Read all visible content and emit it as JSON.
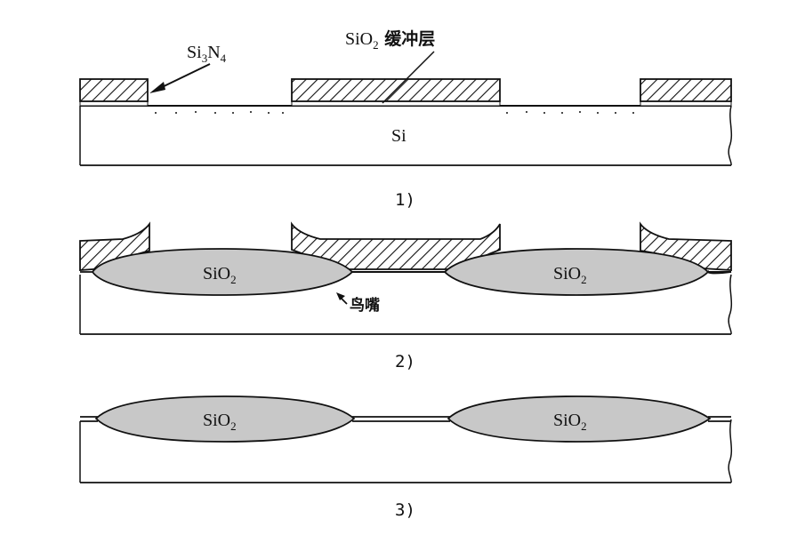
{
  "panel1": {
    "nitride_label": {
      "main": "Si",
      "sub1": "3",
      "mid": "N",
      "sub2": "4"
    },
    "buffer_label": {
      "main": "SiO",
      "sub": "2",
      "suffix": " 缓冲层"
    },
    "substrate_label": "Si",
    "caption": "1)"
  },
  "panel2": {
    "oxide_label": {
      "main": "SiO",
      "sub": "2"
    },
    "birds_beak_label": "鸟嘴",
    "caption": "2)"
  },
  "panel3": {
    "oxide_label": {
      "main": "SiO",
      "sub": "2"
    },
    "caption": "3)"
  },
  "colors": {
    "oxide_fill": "#c8c8c8",
    "line": "#111111",
    "background": "#ffffff"
  }
}
